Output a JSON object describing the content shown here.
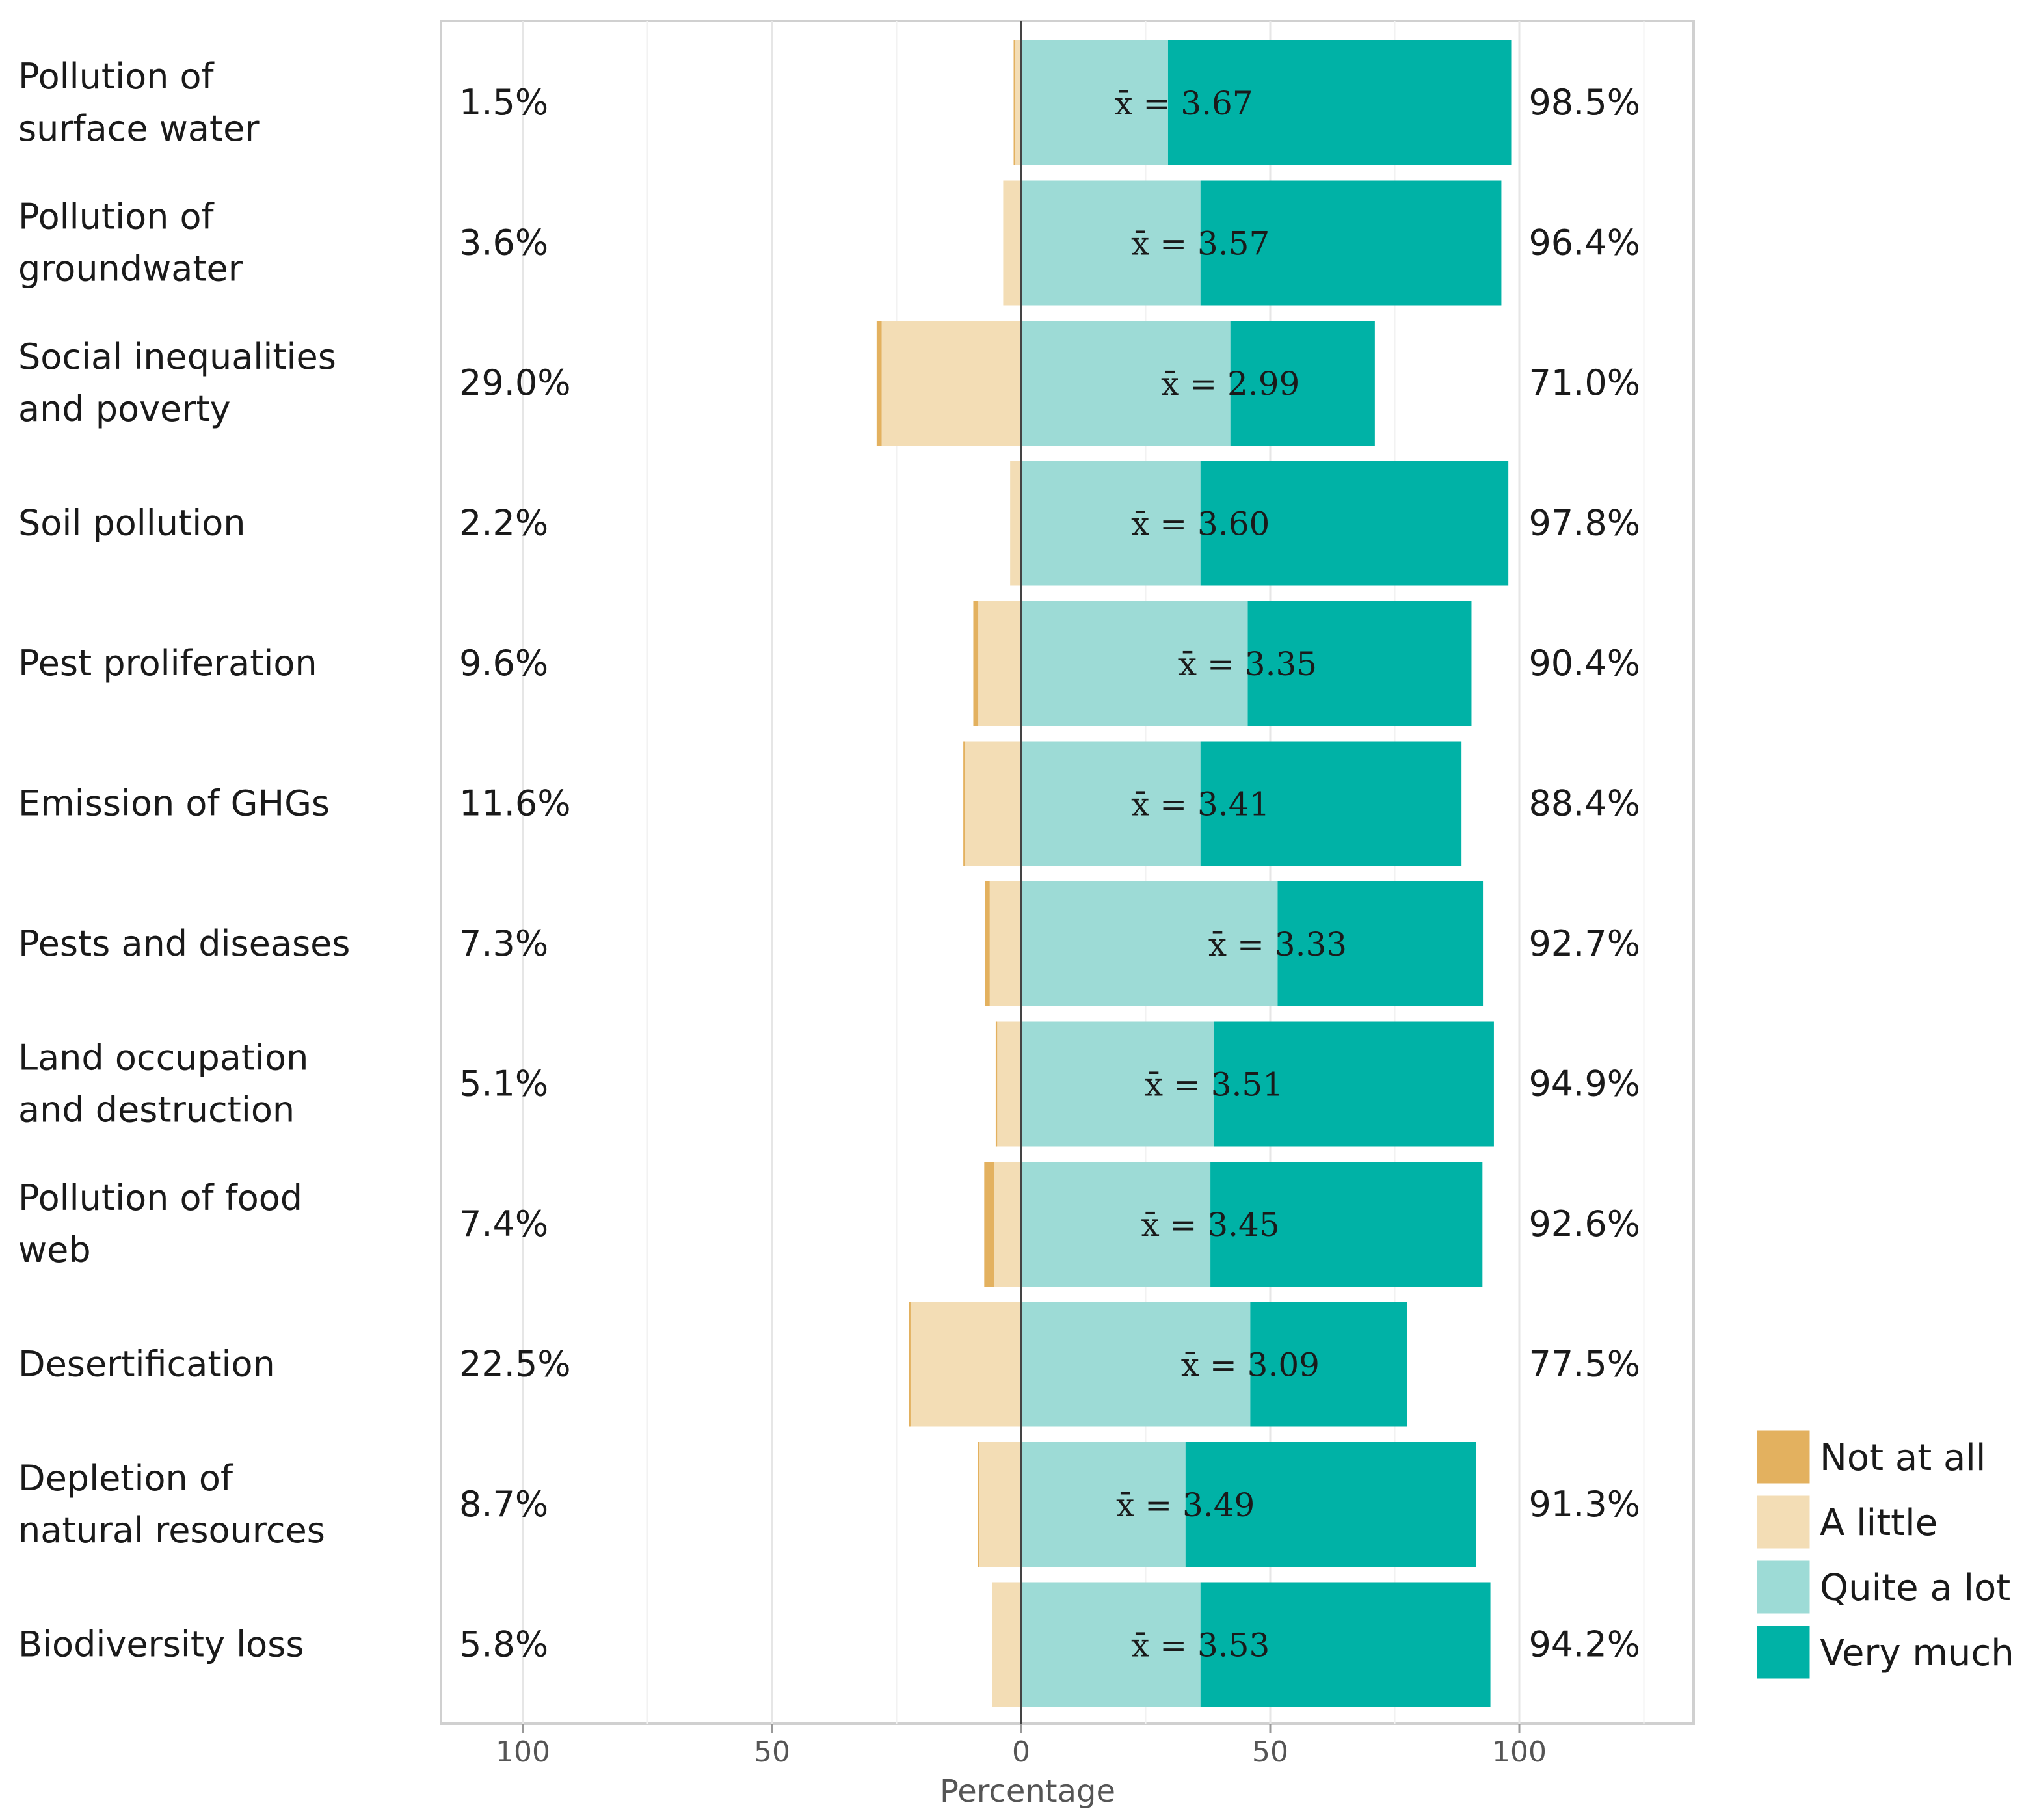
{
  "chart_data": {
    "type": "bar",
    "orientation": "horizontal-diverging",
    "xlabel": "Percentage",
    "xlim": [
      -100,
      100
    ],
    "x_ticks": [
      {
        "value": -100,
        "label": "100"
      },
      {
        "value": -50,
        "label": "50"
      },
      {
        "value": 0,
        "label": "0"
      },
      {
        "value": 50,
        "label": "50"
      },
      {
        "value": 100,
        "label": "100"
      }
    ],
    "legend_position": "bottom-right",
    "series": [
      {
        "name": "Not at all",
        "color": "#E3B15F",
        "side": "negative"
      },
      {
        "name": "A little",
        "color": "#F3DDB5",
        "side": "negative"
      },
      {
        "name": "Quite a lot",
        "color": "#9DDBD6",
        "side": "positive"
      },
      {
        "name": "Very much",
        "color": "#00B2A6",
        "side": "positive"
      }
    ],
    "categories": [
      {
        "label": [
          "Pollution of",
          "surface water"
        ],
        "not_at_all": 0.3,
        "a_little": 1.2,
        "quite_a_lot": 29.5,
        "very_much": 69.0,
        "left_pct": "1.5%",
        "right_pct": "98.5%",
        "mean": "x̄ = 3.67"
      },
      {
        "label": [
          "Pollution of",
          "groundwater"
        ],
        "not_at_all": 0.0,
        "a_little": 3.6,
        "quite_a_lot": 36.0,
        "very_much": 60.4,
        "left_pct": "3.6%",
        "right_pct": "96.4%",
        "mean": "x̄ = 3.57"
      },
      {
        "label": [
          "Social inequalities",
          "and poverty"
        ],
        "not_at_all": 1.0,
        "a_little": 28.0,
        "quite_a_lot": 42.0,
        "very_much": 29.0,
        "left_pct": "29.0%",
        "right_pct": "71.0%",
        "mean": "x̄ = 2.99"
      },
      {
        "label": [
          "Soil pollution"
        ],
        "not_at_all": 0.0,
        "a_little": 2.2,
        "quite_a_lot": 36.0,
        "very_much": 61.8,
        "left_pct": "2.2%",
        "right_pct": "97.8%",
        "mean": "x̄ = 3.60"
      },
      {
        "label": [
          "Pest proliferation"
        ],
        "not_at_all": 1.0,
        "a_little": 8.6,
        "quite_a_lot": 45.5,
        "very_much": 44.9,
        "left_pct": "9.6%",
        "right_pct": "90.4%",
        "mean": "x̄ = 3.35"
      },
      {
        "label": [
          "Emission of GHGs"
        ],
        "not_at_all": 0.3,
        "a_little": 11.3,
        "quite_a_lot": 36.0,
        "very_much": 52.4,
        "left_pct": "11.6%",
        "right_pct": "88.4%",
        "mean": "x̄ = 3.41"
      },
      {
        "label": [
          "Pests and diseases"
        ],
        "not_at_all": 1.0,
        "a_little": 6.3,
        "quite_a_lot": 51.5,
        "very_much": 41.2,
        "left_pct": "7.3%",
        "right_pct": "92.7%",
        "mean": "x̄ = 3.33"
      },
      {
        "label": [
          "Land occupation",
          "and destruction"
        ],
        "not_at_all": 0.3,
        "a_little": 4.8,
        "quite_a_lot": 38.7,
        "very_much": 56.2,
        "left_pct": "5.1%",
        "right_pct": "94.9%",
        "mean": "x̄ = 3.51"
      },
      {
        "label": [
          "Pollution of food",
          "web"
        ],
        "not_at_all": 2.0,
        "a_little": 5.4,
        "quite_a_lot": 38.0,
        "very_much": 54.6,
        "left_pct": "7.4%",
        "right_pct": "92.6%",
        "mean": "x̄ = 3.45"
      },
      {
        "label": [
          "Desertification"
        ],
        "not_at_all": 0.3,
        "a_little": 22.2,
        "quite_a_lot": 46.0,
        "very_much": 31.5,
        "left_pct": "22.5%",
        "right_pct": "77.5%",
        "mean": "x̄ = 3.09"
      },
      {
        "label": [
          "Depletion of",
          "natural resources"
        ],
        "not_at_all": 0.3,
        "a_little": 8.4,
        "quite_a_lot": 33.0,
        "very_much": 58.3,
        "left_pct": "8.7%",
        "right_pct": "91.3%",
        "mean": "x̄ = 3.49"
      },
      {
        "label": [
          "Biodiversity loss"
        ],
        "not_at_all": 0.0,
        "a_little": 5.8,
        "quite_a_lot": 36.0,
        "very_much": 58.2,
        "left_pct": "5.8%",
        "right_pct": "94.2%",
        "mean": "x̄ = 3.53"
      }
    ]
  }
}
